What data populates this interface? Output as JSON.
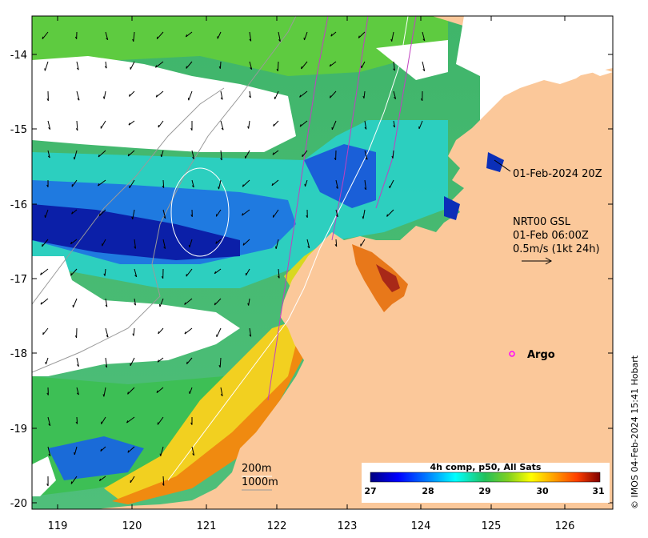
{
  "map": {
    "lon_ticks": [
      "119",
      "120",
      "121",
      "122",
      "123",
      "124",
      "125",
      "126"
    ],
    "lat_ticks": [
      "-14",
      "-15",
      "-16",
      "-17",
      "-18",
      "-19",
      "-20"
    ],
    "annotation_date": "01-Feb-2024 20Z",
    "product_line1": "NRT00 GSL",
    "product_line2": "01-Feb 06:00Z",
    "product_line3": "0.5m/s (1kt 24h)",
    "argo_label": "Argo",
    "depth_label_200": "200m",
    "depth_label_1000": "1000m",
    "credit": "© IMOS 04-Feb-2024 15:41 Hobart"
  },
  "colorbar": {
    "title": "4h comp, p50, All Sats",
    "ticks": [
      "27",
      "28",
      "29",
      "30",
      "31"
    ],
    "colors": [
      "#00007f",
      "#0000ff",
      "#007fff",
      "#00ffff",
      "#22c05a",
      "#7fd020",
      "#ffff00",
      "#ff9f00",
      "#ff3f00",
      "#7f0000"
    ]
  },
  "colors": {
    "land": "#fbc89a",
    "no_data": "#ffffff",
    "argo_marker": "#ff00ff",
    "trajectory": "#c040c0"
  }
}
